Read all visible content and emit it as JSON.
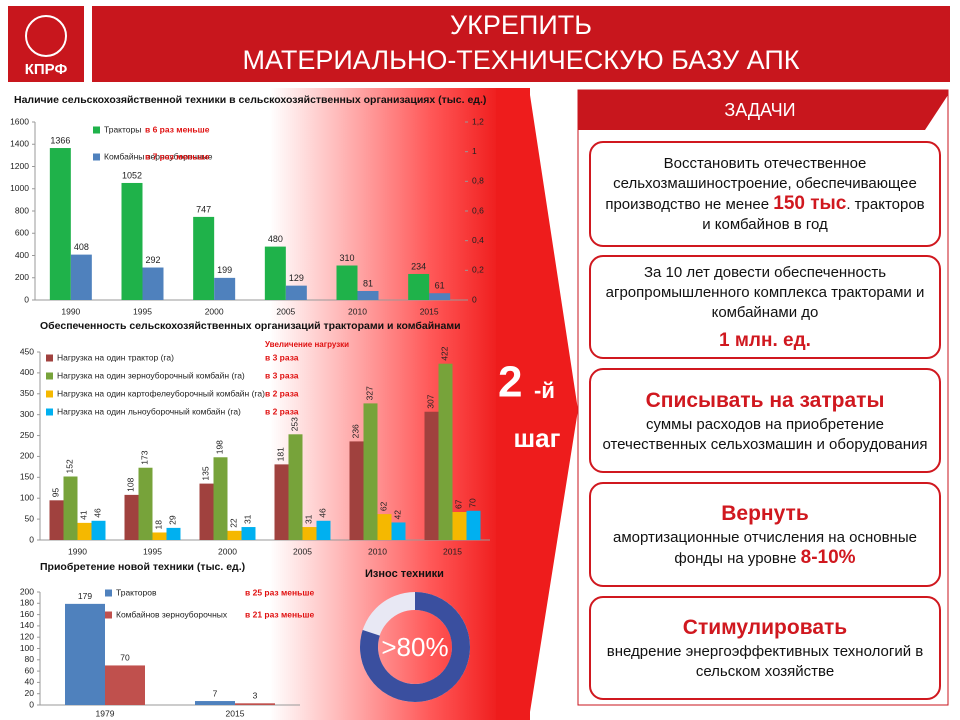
{
  "header": {
    "logo": "КПРФ",
    "title_line1": "УКРЕПИТЬ",
    "title_line2": "МАТЕРИАЛЬНО-ТЕХНИЧЕСКУЮ БАЗУ АПК"
  },
  "arrow": {
    "number": "2",
    "suffix": "-й",
    "word": "шаг"
  },
  "tasks": {
    "title": "ЗАДАЧИ",
    "items": [
      {
        "text": "Восстановить отечественное сельхозмашиностроение, обеспечивающее производство не менее",
        "highlight": "150 тыс",
        "text_after": ". тракторов и комбайнов в год"
      },
      {
        "text": "За 10 лет довести обеспеченность агропромышленного комплекса тракторами и комбайнами до",
        "highlight": "1 млн. ед."
      },
      {
        "heading": "Списывать на затраты",
        "text": "суммы расходов на приобретение отечественных сельхозмашин и оборудования"
      },
      {
        "heading": "Вернуть",
        "text": "амортизационные отчисления на основные фонды на уровне",
        "highlight": "8-10%"
      },
      {
        "heading": "Стимулировать",
        "text": "внедрение энергоэффективных технологий в сельском хозяйстве"
      }
    ]
  },
  "chart_data": [
    {
      "type": "bar",
      "title": "Наличие сельскохозяйственной техники в сельскохозяйственных организациях (тыс. ед.)",
      "categories": [
        "1990",
        "1995",
        "2000",
        "2005",
        "2010",
        "2015"
      ],
      "series": [
        {
          "name": "Тракторы",
          "note": "в 6 раз меньше",
          "color": "#1fb24a",
          "values": [
            1366,
            1052,
            747,
            480,
            310,
            234
          ]
        },
        {
          "name": "Комбайны зерноуборочные",
          "note": "в 7 раз меньше",
          "color": "#4f81bd",
          "values": [
            408,
            292,
            199,
            129,
            81,
            61
          ]
        }
      ],
      "ylim": [
        0,
        1600
      ],
      "yticks": [
        0,
        200,
        400,
        600,
        800,
        1000,
        1200,
        1400,
        1600
      ],
      "y2lim": [
        0,
        1.2
      ],
      "y2ticks": [
        0,
        {
          "value": 0.2,
          "label": "0,2"
        },
        {
          "value": 0.4,
          "label": "0,4"
        },
        {
          "value": 0.6,
          "label": "0,6"
        },
        {
          "value": 0.8,
          "label": "0,8"
        },
        1,
        {
          "value": 1.2,
          "label": "1,2"
        }
      ]
    },
    {
      "type": "bar",
      "title": "Обеспеченность сельскохозяйственных организаций тракторами и комбайнами",
      "legend_title": "Увеличение нагрузки",
      "categories": [
        "1990",
        "1995",
        "2000",
        "2005",
        "2010",
        "2015"
      ],
      "series": [
        {
          "name": "Нагрузка на один трактор (га)",
          "note": "в 3 раза",
          "color": "#a0413e",
          "values": [
            95,
            108,
            135,
            181,
            236,
            307
          ]
        },
        {
          "name": "Нагрузка на один зерноуборочный комбайн (га)",
          "note": "в 3 раза",
          "color": "#77a33a",
          "values": [
            152,
            173,
            198,
            253,
            327,
            422
          ]
        },
        {
          "name": "Нагрузка на один картофелеуборочный комбайн (га)",
          "note": "в 2 раза",
          "color": "#f5b800",
          "values": [
            41,
            18,
            22,
            31,
            62,
            67
          ]
        },
        {
          "name": "Нагрузка на один льноуборочный комбайн (га)",
          "note": "в 2 раза",
          "color": "#00b0f0",
          "values": [
            46,
            29,
            31,
            46,
            42,
            70
          ]
        }
      ],
      "ylim": [
        0,
        450
      ],
      "yticks": [
        0,
        50,
        100,
        150,
        200,
        250,
        300,
        350,
        400,
        450
      ]
    },
    {
      "type": "bar",
      "title": "Приобретение новой техники (тыс. ед.)",
      "categories": [
        "1979",
        "2015"
      ],
      "series": [
        {
          "name": "Тракторов",
          "note": "в 25 раз меньше",
          "color": "#4f81bd",
          "values": [
            179,
            7
          ]
        },
        {
          "name": "Комбайнов зерноуборочных",
          "note": "в 21 раз меньше",
          "color": "#c0504d",
          "values": [
            70,
            3
          ]
        }
      ],
      "ylim": [
        0,
        200
      ],
      "yticks": [
        0,
        20,
        40,
        60,
        80,
        100,
        120,
        140,
        160,
        180,
        200
      ]
    },
    {
      "type": "donut",
      "title": "Износ техники",
      "values": [
        80
      ],
      "value_labels": [
        ">80%"
      ],
      "color": "#3a4f9f"
    }
  ]
}
